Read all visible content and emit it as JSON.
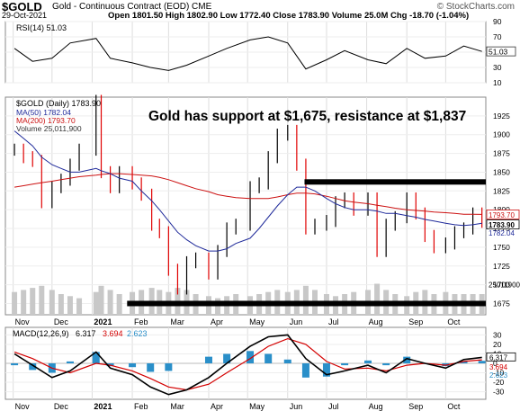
{
  "header": {
    "symbol": "$GOLD",
    "description": "Gold - Continuous Contract (EOD) CME",
    "date": "29-Oct-2021",
    "quote": "Open 1801.50  High 1802.90  Low 1772.40  Close 1783.90  Volume 25.0M  Chg -18.70 (-1.04%)",
    "brand": "© StockCharts.com"
  },
  "colors": {
    "up": "#000000",
    "down": "#e00000",
    "ma50": "#1f2a9a",
    "ma200": "#cc1111",
    "rsi": "#000000",
    "macd": "#000000",
    "signal": "#d40000",
    "hist": "#2a8fc9",
    "volume": "#c8c8c8",
    "support": "#000000",
    "resistance": "#000000"
  },
  "chart_data": [
    {
      "type": "line",
      "panel": "rsi",
      "legend": "RSI(14) 51.03",
      "value_label": "51.03",
      "yticks": [
        10,
        30,
        50,
        70,
        90
      ],
      "ylim": [
        10,
        90
      ],
      "guides": [
        30,
        70
      ],
      "x": [
        "2020-11-02",
        "2020-11-16",
        "2020-12-01",
        "2020-12-15",
        "2021-01-04",
        "2021-01-15",
        "2021-02-01",
        "2021-02-15",
        "2021-03-01",
        "2021-03-15",
        "2021-04-01",
        "2021-04-15",
        "2021-05-03",
        "2021-05-17",
        "2021-06-01",
        "2021-06-15",
        "2021-07-01",
        "2021-07-15",
        "2021-08-02",
        "2021-08-16",
        "2021-09-01",
        "2021-09-15",
        "2021-10-01",
        "2021-10-15",
        "2021-10-29"
      ],
      "values": [
        55,
        38,
        42,
        62,
        68,
        42,
        36,
        30,
        26,
        33,
        45,
        55,
        66,
        70,
        62,
        28,
        40,
        52,
        40,
        35,
        55,
        42,
        45,
        58,
        51
      ]
    },
    {
      "type": "line",
      "panel": "price",
      "legend": [
        "$GOLD (Daily) 1783.90",
        "MA(50) 1782.04",
        "MA(200) 1793.70",
        "Volume 25,011,900"
      ],
      "annotation": "Gold has support at $1,675, resistance at $1,837",
      "last_price_label": "1783.90",
      "ma200_label": "1793.70",
      "ma50_label": "1782.04",
      "volume_label": "25011900",
      "yticks": [
        1675,
        1700,
        1725,
        1750,
        1775,
        1800,
        1825,
        1850,
        1875,
        1900,
        1925
      ],
      "ylim": [
        1660,
        1950
      ],
      "support": 1675,
      "resistance": 1837,
      "x": [
        "2020-11-02",
        "2020-11-09",
        "2020-11-16",
        "2020-11-23",
        "2020-12-01",
        "2020-12-08",
        "2020-12-15",
        "2020-12-22",
        "2021-01-04",
        "2021-01-08",
        "2021-01-15",
        "2021-01-22",
        "2021-02-01",
        "2021-02-08",
        "2021-02-16",
        "2021-02-22",
        "2021-03-01",
        "2021-03-08",
        "2021-03-15",
        "2021-03-22",
        "2021-04-01",
        "2021-04-08",
        "2021-04-15",
        "2021-04-22",
        "2021-05-03",
        "2021-05-10",
        "2021-05-17",
        "2021-05-24",
        "2021-06-01",
        "2021-06-08",
        "2021-06-15",
        "2021-06-22",
        "2021-07-01",
        "2021-07-08",
        "2021-07-15",
        "2021-07-22",
        "2021-08-02",
        "2021-08-09",
        "2021-08-16",
        "2021-08-23",
        "2021-09-01",
        "2021-09-08",
        "2021-09-15",
        "2021-09-22",
        "2021-10-01",
        "2021-10-08",
        "2021-10-15",
        "2021-10-22",
        "2021-10-29"
      ],
      "close": [
        1880,
        1870,
        1865,
        1810,
        1830,
        1840,
        1860,
        1880,
        1945,
        1850,
        1830,
        1850,
        1835,
        1820,
        1780,
        1770,
        1720,
        1695,
        1730,
        1735,
        1715,
        1745,
        1775,
        1780,
        1830,
        1835,
        1870,
        1900,
        1905,
        1860,
        1775,
        1780,
        1785,
        1810,
        1815,
        1800,
        1815,
        1745,
        1780,
        1790,
        1815,
        1795,
        1765,
        1750,
        1755,
        1770,
        1775,
        1795,
        1783.9
      ],
      "ma50": [
        1905,
        1895,
        1885,
        1870,
        1860,
        1855,
        1850,
        1850,
        1855,
        1852,
        1848,
        1842,
        1838,
        1825,
        1812,
        1800,
        1785,
        1770,
        1760,
        1752,
        1745,
        1745,
        1748,
        1755,
        1762,
        1775,
        1790,
        1805,
        1820,
        1830,
        1830,
        1825,
        1815,
        1808,
        1803,
        1800,
        1800,
        1798,
        1795,
        1795,
        1792,
        1790,
        1787,
        1785,
        1782,
        1780,
        1779,
        1780,
        1782.04
      ],
      "ma200": [
        1830,
        1832,
        1834,
        1836,
        1838,
        1840,
        1842,
        1844,
        1846,
        1847,
        1848,
        1848,
        1847,
        1846,
        1845,
        1843,
        1840,
        1836,
        1832,
        1828,
        1824,
        1820,
        1818,
        1816,
        1815,
        1815,
        1815,
        1817,
        1820,
        1822,
        1822,
        1821,
        1818,
        1815,
        1812,
        1810,
        1808,
        1806,
        1804,
        1802,
        1800,
        1799,
        1798,
        1797,
        1796,
        1795,
        1794,
        1794,
        1793.7
      ],
      "volume": [
        0.55,
        0.6,
        0.65,
        0.7,
        0.6,
        0.5,
        0.45,
        0.4,
        0.55,
        0.7,
        0.6,
        0.5,
        0.55,
        0.6,
        0.65,
        0.6,
        0.55,
        0.65,
        0.6,
        0.5,
        0.45,
        0.4,
        0.45,
        0.5,
        0.45,
        0.5,
        0.55,
        0.6,
        0.55,
        0.6,
        0.7,
        0.6,
        0.5,
        0.45,
        0.5,
        0.55,
        0.6,
        0.75,
        0.6,
        0.5,
        0.45,
        0.55,
        0.6,
        0.5,
        0.55,
        0.5,
        0.5,
        0.5,
        0.5
      ],
      "xlabels": [
        "Nov",
        "Dec",
        "2021",
        "Feb",
        "Mar",
        "Apr",
        "May",
        "Jun",
        "Jul",
        "Aug",
        "Sep",
        "Oct"
      ],
      "xlabel_dates": [
        "2020-11-01",
        "2020-12-01",
        "2021-01-01",
        "2021-02-01",
        "2021-03-01",
        "2021-04-01",
        "2021-05-01",
        "2021-06-01",
        "2021-07-01",
        "2021-08-01",
        "2021-09-01",
        "2021-10-01"
      ]
    },
    {
      "type": "bar",
      "panel": "macd",
      "legend": [
        "MACD(12,26,9)",
        "6.317",
        "3.694",
        "2.623"
      ],
      "values_label": [
        "6.317",
        "3.694",
        "2.623"
      ],
      "yticks": [
        -30,
        -20,
        -10,
        0,
        10,
        20,
        30
      ],
      "ylim": [
        -38,
        38
      ],
      "x": [
        "2020-11-02",
        "2020-11-16",
        "2020-12-01",
        "2020-12-15",
        "2021-01-04",
        "2021-01-15",
        "2021-02-01",
        "2021-02-15",
        "2021-03-01",
        "2021-03-15",
        "2021-04-01",
        "2021-04-15",
        "2021-05-03",
        "2021-05-17",
        "2021-06-01",
        "2021-06-15",
        "2021-07-01",
        "2021-07-15",
        "2021-08-02",
        "2021-08-16",
        "2021-09-01",
        "2021-09-15",
        "2021-10-01",
        "2021-10-15",
        "2021-10-29"
      ],
      "macd": [
        10,
        -2,
        -15,
        -8,
        12,
        -5,
        -12,
        -25,
        -33,
        -28,
        -15,
        0,
        18,
        28,
        30,
        5,
        -12,
        -8,
        -2,
        -10,
        5,
        0,
        -5,
        4,
        6.317
      ],
      "signal": [
        12,
        5,
        -5,
        -10,
        0,
        -2,
        -8,
        -16,
        -25,
        -28,
        -22,
        -10,
        5,
        18,
        26,
        20,
        2,
        -6,
        -5,
        -8,
        -2,
        0,
        -2,
        2,
        3.694
      ],
      "hist": [
        -2,
        -7,
        -10,
        2,
        12,
        -3,
        -4,
        -9,
        -8,
        0,
        7,
        10,
        13,
        10,
        4,
        -15,
        -14,
        -2,
        3,
        -2,
        7,
        0,
        -3,
        2,
        2.623
      ],
      "xlabels": [
        "Nov",
        "Dec",
        "2021",
        "Feb",
        "Mar",
        "Apr",
        "May",
        "Jun",
        "Jul",
        "Aug",
        "Sep",
        "Oct"
      ],
      "xlabel_dates": [
        "2020-11-01",
        "2020-12-01",
        "2021-01-01",
        "2021-02-01",
        "2021-03-01",
        "2021-04-01",
        "2021-05-01",
        "2021-06-01",
        "2021-07-01",
        "2021-08-01",
        "2021-09-01",
        "2021-10-01"
      ]
    }
  ]
}
